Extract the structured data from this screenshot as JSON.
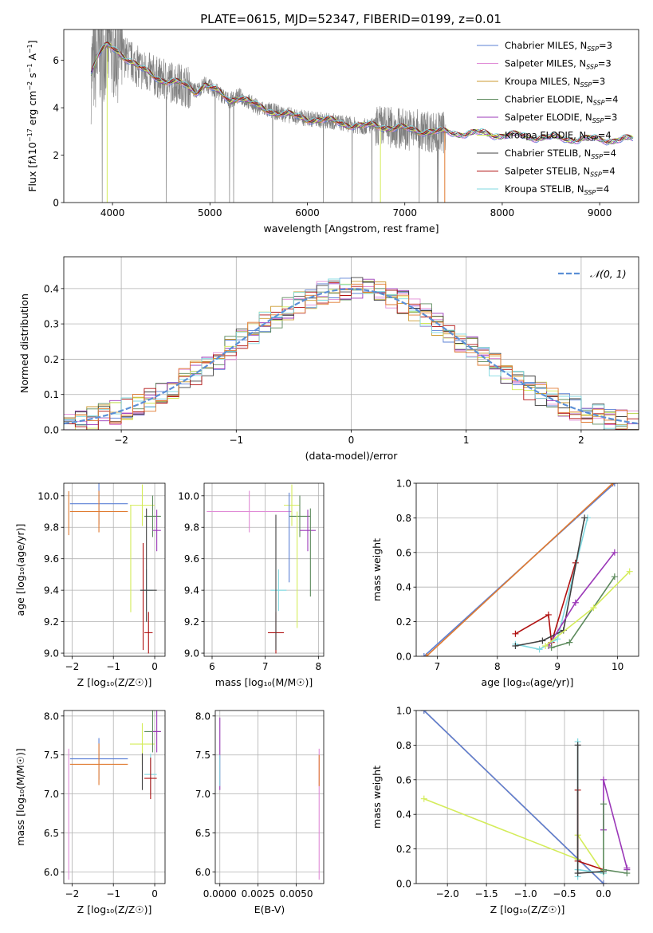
{
  "title": "PLATE=0615, MJD=52347, FIBERID=0199, z=0.01",
  "colors": {
    "chabrier_miles": "#5b80d6",
    "salpeter_miles": "#e08ad6",
    "kroupa_miles": "#cc9a30",
    "chabrier_elodie": "#5c8a5c",
    "salpeter_elodie": "#9b38b8",
    "kroupa_elodie": "#d4ec5a",
    "chabrier_stelib": "#404040",
    "salpeter_stelib": "#b01010",
    "kroupa_stelib": "#7fd8e0",
    "data": "#808080",
    "accent_orange": "#e07a30",
    "normal_curve": "#5b8fd6"
  },
  "chart_data": [
    {
      "id": "spectrum",
      "type": "line",
      "xlabel": "wavelength [Angstrom, rest frame]",
      "ylabel_html": "Flux [f<tspan font-style='italic'>λ</tspan>10<tspan dy='-5' font-size='8'>−17</tspan><tspan dy='5'> erg cm</tspan><tspan dy='-5' font-size='8'>−2</tspan><tspan dy='5'> s</tspan><tspan dy='-5' font-size='8'>−1</tspan><tspan dy='5'> A</tspan><tspan dy='-5' font-size='8'>−1</tspan><tspan dy='5'>]</tspan>",
      "xlim": [
        3500,
        9400
      ],
      "ylim": [
        0,
        7.3
      ],
      "xticks": [
        4000,
        5000,
        6000,
        7000,
        8000,
        9000
      ],
      "yticks": [
        0,
        2,
        4,
        6
      ],
      "legend": [
        {
          "name": "Chabrier MILES, N",
          "sub": "SSP",
          "tail": "=3",
          "color": "#5b80d6"
        },
        {
          "name": "Salpeter MILES, N",
          "sub": "SSP",
          "tail": "=3",
          "color": "#e08ad6"
        },
        {
          "name": "Kroupa MILES, N",
          "sub": "SSP",
          "tail": "=3",
          "color": "#cc9a30"
        },
        {
          "name": "Chabrier ELODIE, N",
          "sub": "SSP",
          "tail": "=4",
          "color": "#5c8a5c"
        },
        {
          "name": "Salpeter ELODIE, N",
          "sub": "SSP",
          "tail": "=3",
          "color": "#9b38b8"
        },
        {
          "name": "Kroupa ELODIE, N",
          "sub": "SSP",
          "tail": "=4",
          "color": "#d4ec5a"
        },
        {
          "name": "Chabrier STELIB, N",
          "sub": "SSP",
          "tail": "=4",
          "color": "#404040"
        },
        {
          "name": "Salpeter STELIB, N",
          "sub": "SSP",
          "tail": "=4",
          "color": "#b01010"
        },
        {
          "name": "Kroupa STELIB, N",
          "sub": "SSP",
          "tail": "=4",
          "color": "#7fd8e0"
        }
      ],
      "model_continuum": [
        [
          3780,
          5.5
        ],
        [
          3850,
          6.2
        ],
        [
          3950,
          6.6
        ],
        [
          4050,
          6.4
        ],
        [
          4150,
          6.1
        ],
        [
          4300,
          5.6
        ],
        [
          4500,
          5.2
        ],
        [
          4700,
          5.0
        ],
        [
          4860,
          4.7
        ],
        [
          4950,
          5.0
        ],
        [
          5100,
          4.6
        ],
        [
          5200,
          4.3
        ],
        [
          5300,
          4.5
        ],
        [
          5500,
          4.0
        ],
        [
          5800,
          3.7
        ],
        [
          5900,
          3.6
        ],
        [
          6100,
          3.5
        ],
        [
          6300,
          3.4
        ],
        [
          6563,
          3.2
        ],
        [
          6700,
          3.25
        ],
        [
          7000,
          3.1
        ],
        [
          7400,
          2.95
        ],
        [
          7800,
          2.9
        ],
        [
          8200,
          2.8
        ],
        [
          8600,
          2.7
        ],
        [
          9000,
          2.65
        ],
        [
          9350,
          2.65
        ]
      ],
      "data_xrange": [
        3780,
        7420
      ]
    },
    {
      "id": "residuals",
      "type": "histogram",
      "xlabel": "(data-model)/error",
      "ylabel": "Normed distribution",
      "xlim": [
        -2.5,
        2.5
      ],
      "ylim": [
        0,
        0.49
      ],
      "xticks": [
        -2,
        -1,
        0,
        1,
        2
      ],
      "yticks": [
        0.0,
        0.1,
        0.2,
        0.3,
        0.4
      ],
      "legend": [
        {
          "name": "𝒩(0, 1)",
          "style": "dashed"
        }
      ],
      "bin_width": 0.1
    },
    {
      "id": "age_vs_Z",
      "type": "errorbar",
      "xlabel": "Z [log₁₀(Z/Z☉)]",
      "ylabel": "age  [log₁₀(age/yr)]",
      "xlim": [
        -2.2,
        0.25
      ],
      "ylim": [
        8.98,
        10.08
      ],
      "xticks": [
        -2,
        -1,
        0
      ],
      "yticks": [
        9.0,
        9.2,
        9.4,
        9.6,
        9.8,
        10.0
      ],
      "points": [
        {
          "x": -1.35,
          "xerr": 0.7,
          "y": 9.95,
          "color": "#5b80d6"
        },
        {
          "x": -1.35,
          "xerr": 0.7,
          "y": 9.9,
          "color": "#e07a30"
        },
        {
          "x": -0.3,
          "xerr": 0.3,
          "y": 9.94,
          "color": "#d4ec5a"
        },
        {
          "x": -0.05,
          "xerr": 0.2,
          "y": 9.87,
          "color": "#5c8a5c"
        },
        {
          "x": 0.05,
          "xerr": 0.1,
          "y": 9.78,
          "color": "#9b38b8"
        },
        {
          "x": -0.2,
          "xerr": 0.15,
          "y": 9.4,
          "color": "#7fd8e0"
        },
        {
          "x": -0.15,
          "xerr": 0.1,
          "y": 9.13,
          "color": "#b01010"
        }
      ]
    },
    {
      "id": "age_vs_mass",
      "type": "errorbar",
      "xlabel": "mass [log₁₀(M/M☉)]",
      "ylabel": "",
      "xlim": [
        5.85,
        8.1
      ],
      "ylim": [
        8.98,
        10.08
      ],
      "xticks": [
        6,
        7,
        8
      ],
      "yticks": [
        9.0,
        9.2,
        9.4,
        9.6,
        9.8,
        10.0
      ],
      "points": [
        {
          "x": 6.7,
          "xerr": 0.8,
          "y": 9.9,
          "color": "#e08ad6"
        },
        {
          "x": 7.5,
          "xerr": 0.15,
          "y": 9.94,
          "color": "#d4ec5a"
        },
        {
          "x": 7.65,
          "xerr": 0.2,
          "y": 9.87,
          "color": "#5c8a5c"
        },
        {
          "x": 7.8,
          "xerr": 0.15,
          "y": 9.78,
          "color": "#9b38b8"
        },
        {
          "x": 7.25,
          "xerr": 0.15,
          "y": 9.4,
          "color": "#7fd8e0"
        },
        {
          "x": 7.2,
          "xerr": 0.15,
          "y": 9.13,
          "color": "#b01010"
        }
      ]
    },
    {
      "id": "mass_weight_vs_age",
      "type": "line",
      "xlabel": "age  [log₁₀(age/yr)]",
      "ylabel": "mass weight",
      "xlim": [
        6.65,
        10.35
      ],
      "ylim": [
        0,
        1
      ],
      "xticks": [
        7,
        8,
        9,
        10
      ],
      "yticks": [
        0.0,
        0.2,
        0.4,
        0.6,
        0.8,
        1.0
      ],
      "series": [
        {
          "color": "#5b80d6",
          "x": [
            6.78,
            9.95
          ],
          "y": [
            0.0,
            1.0
          ]
        },
        {
          "color": "#e07a30",
          "x": [
            6.82,
            9.92
          ],
          "y": [
            0.0,
            1.0
          ]
        },
        {
          "color": "#b01010",
          "x": [
            8.3,
            8.85,
            8.9,
            9.3
          ],
          "y": [
            0.13,
            0.24,
            0.08,
            0.54
          ]
        },
        {
          "color": "#7fd8e0",
          "x": [
            8.3,
            8.7,
            9.0,
            9.5
          ],
          "y": [
            0.07,
            0.04,
            0.1,
            0.8
          ]
        },
        {
          "color": "#404040",
          "x": [
            8.3,
            8.75,
            9.1,
            9.45
          ],
          "y": [
            0.06,
            0.09,
            0.15,
            0.8
          ]
        },
        {
          "color": "#9b38b8",
          "x": [
            8.85,
            9.3,
            9.95
          ],
          "y": [
            0.06,
            0.31,
            0.6
          ]
        },
        {
          "color": "#5c8a5c",
          "x": [
            8.9,
            9.2,
            9.95
          ],
          "y": [
            0.05,
            0.08,
            0.46
          ]
        },
        {
          "color": "#d4ec5a",
          "x": [
            8.8,
            9.6,
            10.2
          ],
          "y": [
            0.06,
            0.28,
            0.49
          ]
        }
      ]
    },
    {
      "id": "mass_vs_Z",
      "type": "errorbar",
      "xlabel": "Z [log₁₀(Z/Z☉)]",
      "ylabel": "mass [log₁₀(M/M☉)]",
      "xlim": [
        -2.2,
        0.25
      ],
      "ylim": [
        5.85,
        8.07
      ],
      "xticks": [
        -2,
        -1,
        0
      ],
      "yticks": [
        6.0,
        6.5,
        7.0,
        7.5,
        8.0
      ],
      "points": [
        {
          "x": -1.35,
          "xerr": 0.7,
          "y": 7.45,
          "color": "#5b80d6"
        },
        {
          "x": -1.35,
          "xerr": 0.7,
          "y": 7.38,
          "color": "#e07a30"
        },
        {
          "x": -0.3,
          "xerr": 0.3,
          "y": 7.64,
          "color": "#d4ec5a"
        },
        {
          "x": -0.05,
          "xerr": 0.2,
          "y": 7.8,
          "color": "#5c8a5c"
        },
        {
          "x": 0.05,
          "xerr": 0.1,
          "y": 7.8,
          "color": "#9b38b8"
        },
        {
          "x": -0.1,
          "xerr": 0.15,
          "y": 7.25,
          "color": "#7fd8e0"
        },
        {
          "x": -0.1,
          "xerr": 0.15,
          "y": 7.2,
          "color": "#b01010"
        }
      ]
    },
    {
      "id": "mass_vs_EBV",
      "type": "errorbar",
      "xlabel": "E(B-V)",
      "ylabel": "",
      "xlim": [
        -0.0003,
        0.0068
      ],
      "ylim": [
        5.85,
        8.07
      ],
      "xticks": [
        0.0,
        0.0025,
        0.005
      ],
      "xticklabels": [
        "0.0000",
        "0.0025",
        "0.0050"
      ],
      "yticks": [
        6.0,
        6.5,
        7.0,
        7.5,
        8.0
      ]
    },
    {
      "id": "mass_weight_vs_Z",
      "type": "line",
      "xlabel": "Z [log₁₀(Z/Z☉)]",
      "ylabel": "mass weight",
      "xlim": [
        -2.4,
        0.45
      ],
      "ylim": [
        0,
        1
      ],
      "xticks": [
        -2.0,
        -1.5,
        -1.0,
        -0.5,
        0.0
      ],
      "xticklabels": [
        "−2.0",
        "−1.5",
        "−1.0",
        "−0.5",
        "0.0"
      ],
      "yticks": [
        0.0,
        0.2,
        0.4,
        0.6,
        0.8,
        1.0
      ],
      "series": [
        {
          "color": "#e07a30",
          "x": [
            -2.3,
            0.0
          ],
          "y": [
            1.0,
            0.0
          ]
        },
        {
          "color": "#5b80d6",
          "x": [
            -2.3,
            0.0
          ],
          "y": [
            1.0,
            0.0
          ]
        },
        {
          "color": "#d4ec5a",
          "x": [
            -2.3,
            -0.33,
            -0.33,
            0.0
          ],
          "y": [
            0.49,
            0.14,
            0.28,
            0.06
          ]
        },
        {
          "color": "#7fd8e0",
          "x": [
            -0.33,
            -0.33,
            -0.33,
            0.0
          ],
          "y": [
            0.82,
            0.04,
            0.08,
            0.06
          ]
        },
        {
          "color": "#b01010",
          "x": [
            -0.33,
            -0.33,
            0.0,
            0.0
          ],
          "y": [
            0.54,
            0.13,
            0.08,
            0.08
          ]
        },
        {
          "color": "#404040",
          "x": [
            -0.33,
            -0.33,
            0.0
          ],
          "y": [
            0.8,
            0.06,
            0.07
          ]
        },
        {
          "color": "#9b38b8",
          "x": [
            0.0,
            0.0,
            0.3,
            0.3
          ],
          "y": [
            0.31,
            0.6,
            0.09,
            0.08
          ]
        },
        {
          "color": "#5c8a5c",
          "x": [
            0.0,
            0.0,
            0.3
          ],
          "y": [
            0.46,
            0.08,
            0.06
          ]
        }
      ]
    }
  ]
}
